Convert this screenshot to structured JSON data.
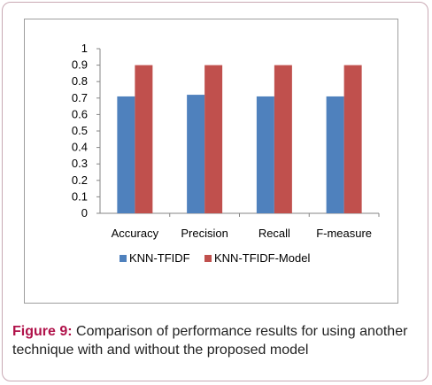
{
  "chart_data": {
    "type": "bar",
    "categories": [
      "Accuracy",
      "Precision",
      "Recall",
      "F-measure"
    ],
    "series": [
      {
        "name": "KNN-TFIDF",
        "values": [
          0.71,
          0.72,
          0.71,
          0.71
        ],
        "color": "#4f81bd"
      },
      {
        "name": "KNN-TFIDF-Model",
        "values": [
          0.9,
          0.9,
          0.9,
          0.9
        ],
        "color": "#c0504d"
      }
    ],
    "ylim": [
      0,
      1
    ],
    "yticks": [
      "0",
      "0.1",
      "0.2",
      "0.3",
      "0.4",
      "0.5",
      "0.6",
      "0.7",
      "0.8",
      "0.9",
      "1"
    ],
    "grid": false,
    "legend_position": "bottom"
  },
  "caption": {
    "label": "Figure 9:",
    "text": " Comparison of performance results for using another technique with and without the proposed model"
  },
  "colors": {
    "caption_label": "#b0124a",
    "frame_border": "#c9a9b4"
  }
}
